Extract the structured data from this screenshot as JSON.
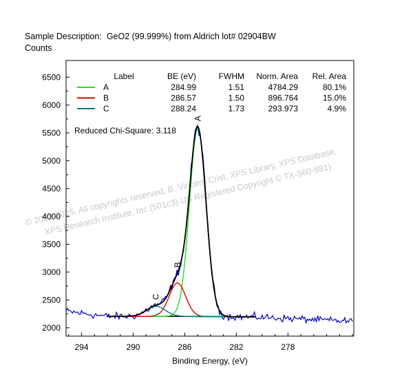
{
  "header": {
    "description_label": "Sample Description:",
    "description": "GeO2 (99.999%) from Aldrich lot# 02904BW",
    "counts_label": "Counts"
  },
  "chart_data": {
    "type": "line",
    "title": "",
    "xlabel": "Binding Energy, (eV)",
    "ylabel": "Counts",
    "xlim": [
      295.2,
      272.9
    ],
    "ylim": [
      1850,
      6800
    ],
    "x_reversed": true,
    "x_ticks": [
      294,
      290,
      286,
      282,
      278
    ],
    "y_ticks": [
      2000,
      2500,
      3000,
      3500,
      4000,
      4500,
      5000,
      5500,
      6000,
      6500
    ],
    "grid": false,
    "legend_position": "top",
    "table": {
      "headers": [
        "Label",
        "BE (eV)",
        "FWHM",
        "Norm. Area",
        "Rel. Area"
      ],
      "rows": [
        [
          "A",
          "284.99",
          "1.51",
          "4784.29",
          "80.1%"
        ],
        [
          "B",
          "286.57",
          "1.50",
          "896.764",
          "15.0%"
        ],
        [
          "C",
          "288.24",
          "1.73",
          "293.973",
          "4.9%"
        ]
      ]
    },
    "components": [
      {
        "label": "A",
        "center": 284.99,
        "fwhm": 1.51,
        "height": 3380,
        "color": "#22dd22"
      },
      {
        "label": "B",
        "center": 286.57,
        "fwhm": 1.5,
        "height": 600,
        "color": "#dd0000"
      },
      {
        "label": "C",
        "center": 288.24,
        "fwhm": 1.73,
        "height": 180,
        "color": "#007878"
      }
    ],
    "background": {
      "x": [
        292.0,
        286.0,
        280.5
      ],
      "y": [
        2205,
        2205,
        2195
      ],
      "color": "#000000"
    },
    "envelope_color": "#000000",
    "raw_color": "#0000cc",
    "raw_noise": 45,
    "raw_range": [
      295.2,
      272.9
    ],
    "fit_range": [
      292.0,
      280.5
    ],
    "annotation": "Reduced Chi-Square: 3.118",
    "watermark": [
      "©  2002-2025,  All copyrights reserved,   B. Vincent Crist,  XPS Library, XPS Database,",
      "XPS Research Institute, Inc (501c3)           US Registered Copyright © TX-560-881)"
    ]
  }
}
